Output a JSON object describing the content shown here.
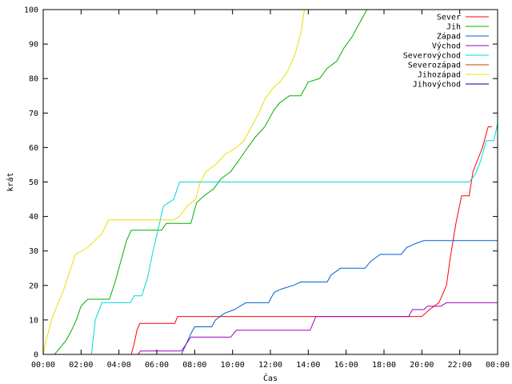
{
  "chart_data": {
    "type": "line",
    "title": "",
    "xlabel": "Čas",
    "ylabel": "krát",
    "xlim": [
      0,
      24
    ],
    "ylim": [
      0,
      100
    ],
    "x_ticks": [
      {
        "value": 0,
        "label": "00:00"
      },
      {
        "value": 2,
        "label": "02:00"
      },
      {
        "value": 4,
        "label": "04:00"
      },
      {
        "value": 6,
        "label": "06:00"
      },
      {
        "value": 8,
        "label": "08:00"
      },
      {
        "value": 10,
        "label": "10:00"
      },
      {
        "value": 12,
        "label": "12:00"
      },
      {
        "value": 14,
        "label": "14:00"
      },
      {
        "value": 16,
        "label": "16:00"
      },
      {
        "value": 18,
        "label": "18:00"
      },
      {
        "value": 20,
        "label": "20:00"
      },
      {
        "value": 22,
        "label": "22:00"
      },
      {
        "value": 24,
        "label": "00:00"
      }
    ],
    "y_ticks": [
      0,
      10,
      20,
      30,
      40,
      50,
      60,
      70,
      80,
      90,
      100
    ],
    "grid": false,
    "legend_position": "top-right",
    "series": [
      {
        "name": "Sever",
        "color": "#ff0000",
        "points": [
          [
            0,
            0
          ],
          [
            4.65,
            0
          ],
          [
            4.8,
            3
          ],
          [
            4.95,
            7
          ],
          [
            5.1,
            9
          ],
          [
            6.95,
            9
          ],
          [
            7.1,
            11
          ],
          [
            20.0,
            11
          ],
          [
            20.4,
            13
          ],
          [
            20.9,
            15
          ],
          [
            21.3,
            20
          ],
          [
            21.5,
            28
          ],
          [
            21.8,
            38
          ],
          [
            22.1,
            46
          ],
          [
            22.5,
            46
          ],
          [
            22.7,
            53
          ],
          [
            23.2,
            60
          ],
          [
            23.5,
            66
          ],
          [
            23.7,
            66
          ]
        ]
      },
      {
        "name": "Jih",
        "color": "#00b000",
        "points": [
          [
            0,
            0
          ],
          [
            0.6,
            0
          ],
          [
            0.9,
            2
          ],
          [
            1.2,
            4
          ],
          [
            1.5,
            7
          ],
          [
            1.75,
            10
          ],
          [
            2.0,
            14
          ],
          [
            2.35,
            16
          ],
          [
            3.5,
            16
          ],
          [
            3.8,
            21
          ],
          [
            4.1,
            27
          ],
          [
            4.4,
            33
          ],
          [
            4.65,
            36
          ],
          [
            6.25,
            36
          ],
          [
            6.5,
            38
          ],
          [
            7.8,
            38
          ],
          [
            8.1,
            44
          ],
          [
            8.5,
            46
          ],
          [
            9.0,
            48
          ],
          [
            9.4,
            51
          ],
          [
            9.9,
            53
          ],
          [
            10.3,
            56
          ],
          [
            10.8,
            60
          ],
          [
            11.2,
            63
          ],
          [
            11.7,
            66
          ],
          [
            12.2,
            71
          ],
          [
            12.5,
            73
          ],
          [
            13.0,
            75
          ],
          [
            13.6,
            75
          ],
          [
            14.0,
            79
          ],
          [
            14.6,
            80
          ],
          [
            15.0,
            83
          ],
          [
            15.5,
            85
          ],
          [
            15.9,
            89
          ],
          [
            16.3,
            92
          ],
          [
            16.7,
            96
          ],
          [
            17.1,
            100
          ]
        ]
      },
      {
        "name": "Západ",
        "color": "#0060d0",
        "points": [
          [
            0,
            0
          ],
          [
            7.3,
            0
          ],
          [
            7.55,
            3
          ],
          [
            7.8,
            6
          ],
          [
            8.0,
            8
          ],
          [
            8.9,
            8
          ],
          [
            9.1,
            10
          ],
          [
            9.6,
            12
          ],
          [
            10.1,
            13
          ],
          [
            10.7,
            15
          ],
          [
            11.9,
            15
          ],
          [
            12.2,
            18
          ],
          [
            12.6,
            19
          ],
          [
            13.2,
            20
          ],
          [
            13.6,
            21
          ],
          [
            15.0,
            21
          ],
          [
            15.2,
            23
          ],
          [
            15.7,
            25
          ],
          [
            17.0,
            25
          ],
          [
            17.3,
            27
          ],
          [
            17.8,
            29
          ],
          [
            18.9,
            29
          ],
          [
            19.2,
            31
          ],
          [
            19.6,
            32
          ],
          [
            20.1,
            33
          ],
          [
            24,
            33
          ]
        ]
      },
      {
        "name": "Východ",
        "color": "#a000c0",
        "points": [
          [
            0,
            0
          ],
          [
            5.0,
            0
          ],
          [
            5.15,
            1
          ],
          [
            7.3,
            1
          ],
          [
            7.55,
            3
          ],
          [
            7.8,
            5
          ],
          [
            9.9,
            5
          ],
          [
            10.2,
            7
          ],
          [
            14.1,
            7
          ],
          [
            14.4,
            11
          ],
          [
            19.3,
            11
          ],
          [
            19.5,
            13
          ],
          [
            20.1,
            13
          ],
          [
            20.3,
            14
          ],
          [
            21.0,
            14
          ],
          [
            21.3,
            15
          ],
          [
            24,
            15
          ]
        ]
      },
      {
        "name": "Severovýchod",
        "color": "#00d8d8",
        "points": [
          [
            0,
            0
          ],
          [
            2.55,
            0
          ],
          [
            2.75,
            10
          ],
          [
            3.1,
            15
          ],
          [
            4.6,
            15
          ],
          [
            4.8,
            17
          ],
          [
            5.2,
            17
          ],
          [
            5.5,
            22
          ],
          [
            5.8,
            30
          ],
          [
            6.1,
            37
          ],
          [
            6.35,
            43
          ],
          [
            6.9,
            45
          ],
          [
            7.2,
            50
          ],
          [
            22.5,
            50
          ],
          [
            22.8,
            52
          ],
          [
            23.1,
            56
          ],
          [
            23.4,
            62
          ],
          [
            23.8,
            62
          ],
          [
            24,
            67
          ]
        ]
      },
      {
        "name": "Severozápad",
        "color": "#c04000",
        "points": []
      },
      {
        "name": "Jihozápad",
        "color": "#e8e000",
        "points": [
          [
            0,
            0
          ],
          [
            0.1,
            3
          ],
          [
            0.3,
            7
          ],
          [
            0.5,
            11
          ],
          [
            0.8,
            15
          ],
          [
            1.1,
            19
          ],
          [
            1.4,
            24
          ],
          [
            1.7,
            29
          ],
          [
            2.35,
            31
          ],
          [
            3.1,
            35
          ],
          [
            3.45,
            39
          ],
          [
            6.9,
            39
          ],
          [
            7.2,
            40
          ],
          [
            7.6,
            43
          ],
          [
            8.05,
            45
          ],
          [
            8.3,
            50
          ],
          [
            8.6,
            53
          ],
          [
            9.1,
            55
          ],
          [
            9.6,
            58
          ],
          [
            10.2,
            60
          ],
          [
            10.6,
            62
          ],
          [
            11.0,
            66
          ],
          [
            11.4,
            70
          ],
          [
            11.7,
            74
          ],
          [
            12.1,
            77
          ],
          [
            12.5,
            79
          ],
          [
            12.9,
            82
          ],
          [
            13.3,
            87
          ],
          [
            13.6,
            93
          ],
          [
            13.8,
            100
          ]
        ]
      },
      {
        "name": "Jihovýchod",
        "color": "#00008b",
        "points": [
          [
            0,
            0
          ],
          [
            24,
            0
          ]
        ]
      }
    ]
  }
}
